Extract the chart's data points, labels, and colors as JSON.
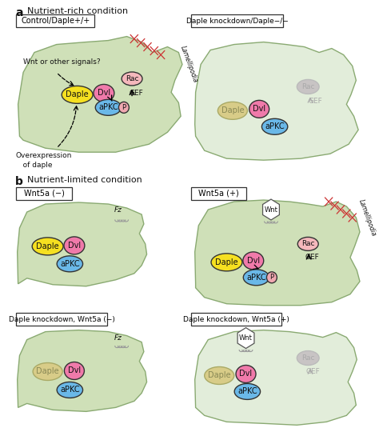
{
  "bg_color": "#ffffff",
  "cell_green": "#cfe0b8",
  "cell_green_light": "#e2edda",
  "cell_green_pale": "#dce8d0",
  "cell_edge": "#8aaa72",
  "daple_yellow": "#f5e020",
  "daple_pale": "#d8cc88",
  "dvl_pink": "#f07aaa",
  "apkc_blue": "#6ab8e8",
  "rac_pink": "#f5b8bc",
  "rac_gray": "#c8c4c4",
  "p_pink": "#f0a8b0",
  "wnt_white": "#ffffff",
  "panel_a_title": "Nutrient-rich condition",
  "panel_b_title": "Nutrient-limited condition",
  "box1": "Control/Daple+/+",
  "box2": "Daple knockdown/Daple−/−",
  "box3": "Wnt5a (−)",
  "box4": "Wnt5a (+)",
  "box5": "Daple knockdown, Wnt5a (−)",
  "box6": "Daple knockdown, Wnt5a (+)"
}
